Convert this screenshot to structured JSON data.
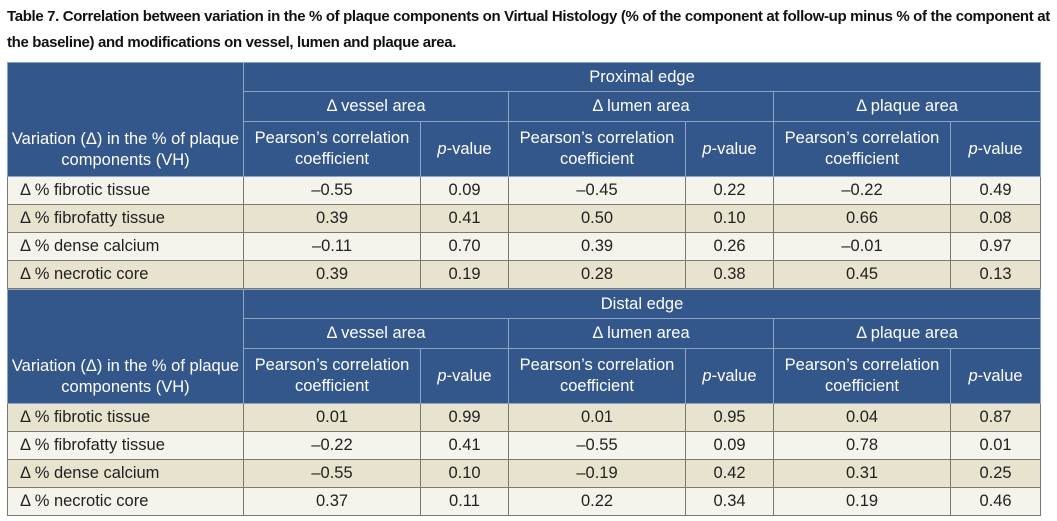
{
  "title": "Table 7. Correlation between variation in the % of plaque components on Virtual Histology (% of the component at follow-up minus % of the component at the baseline) and modifications on vessel, lumen and plaque area.",
  "row_header": "Variation (Δ) in the % of plaque components (VH)",
  "groups": [
    "Δ vessel area",
    "Δ lumen area",
    "Δ plaque area"
  ],
  "coef_header": "Pearson’s correlation coefficient",
  "p_header_italic": "p",
  "p_header_rest": "-value",
  "sections": [
    {
      "edge": "Proximal edge",
      "rows": [
        {
          "label": "Δ % fibrotic tissue",
          "values": [
            "–0.55",
            "0.09",
            "–0.45",
            "0.22",
            "–0.22",
            "0.49"
          ]
        },
        {
          "label": "Δ % fibrofatty tissue",
          "values": [
            "0.39",
            "0.41",
            "0.50",
            "0.10",
            "0.66",
            "0.08"
          ]
        },
        {
          "label": "Δ % dense calcium",
          "values": [
            "–0.11",
            "0.70",
            "0.39",
            "0.26",
            "–0.01",
            "0.97"
          ]
        },
        {
          "label": "Δ % necrotic core",
          "values": [
            "0.39",
            "0.19",
            "0.28",
            "0.38",
            "0.45",
            "0.13"
          ]
        }
      ]
    },
    {
      "edge": "Distal edge",
      "rows": [
        {
          "label": "Δ % fibrotic tissue",
          "values": [
            "0.01",
            "0.99",
            "0.01",
            "0.95",
            "0.04",
            "0.87"
          ]
        },
        {
          "label": "Δ % fibrofatty tissue",
          "values": [
            "–0.22",
            "0.41",
            "–0.55",
            "0.09",
            "0.78",
            "0.01"
          ]
        },
        {
          "label": "Δ % dense calcium",
          "values": [
            "–0.55",
            "0.10",
            "–0.19",
            "0.42",
            "0.31",
            "0.25"
          ]
        },
        {
          "label": "Δ % necrotic core",
          "values": [
            "0.37",
            "0.11",
            "0.22",
            "0.34",
            "0.19",
            "0.46"
          ]
        }
      ]
    }
  ]
}
